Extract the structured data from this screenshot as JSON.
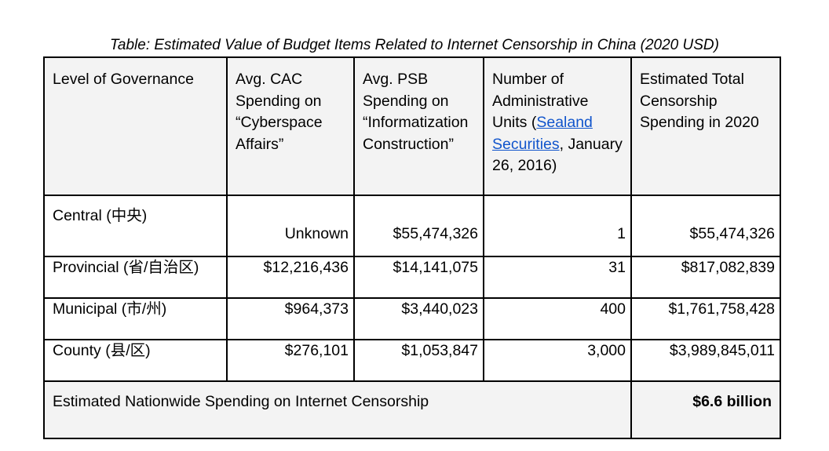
{
  "caption": "Table: Estimated Value of Budget Items Related to Internet Censorship in China (2020 USD)",
  "headers": {
    "level": "Level of Governance",
    "cac": "Avg. CAC Spending on “Cyberspace Affairs”",
    "psb": "Avg. PSB Spending on “Informatization Construction”",
    "units_prefix": "Number of Administrative Units (",
    "units_link": "Sealand Securities",
    "units_suffix": ", January 26, 2016)",
    "total": "Estimated Total Censorship Spending in 2020"
  },
  "rows": [
    {
      "level": "Central (中央)",
      "cac": "Unknown",
      "psb": "$55,474,326",
      "units": "1",
      "total": "$55,474,326"
    },
    {
      "level": "Provincial (省/自治区)",
      "cac": "$12,216,436",
      "psb": "$14,141,075",
      "units": "31",
      "total": "$817,082,839"
    },
    {
      "level": "Municipal (市/州)",
      "cac": "$964,373",
      "psb": "$3,440,023",
      "units": "400",
      "total": "$1,761,758,428"
    },
    {
      "level": "County (县/区)",
      "cac": "$276,101",
      "psb": "$1,053,847",
      "units": "3,000",
      "total": "$3,989,845,011"
    }
  ],
  "footer": {
    "label": "Estimated Nationwide Spending on Internet Censorship",
    "value": "$6.6 billion"
  }
}
